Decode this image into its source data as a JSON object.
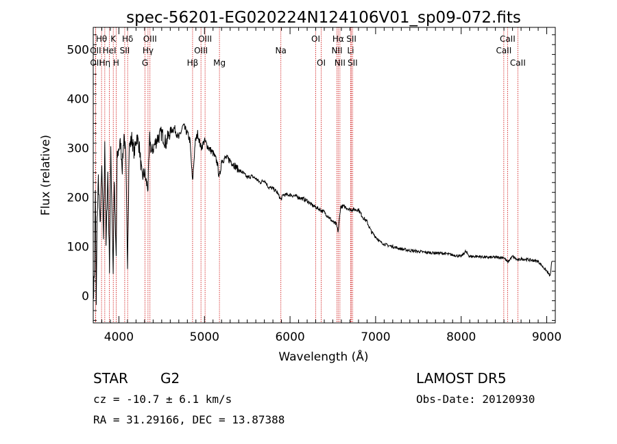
{
  "chart_data": {
    "type": "line",
    "title": "spec-56201-EG020224N124106V01_sp09-072.fits",
    "xlabel": "Wavelength (Å)",
    "ylabel": "Flux (relative)",
    "xlim": [
      3700,
      9100
    ],
    "ylim": [
      -55,
      545
    ],
    "x_ticks": [
      4000,
      5000,
      6000,
      7000,
      8000,
      9000
    ],
    "y_ticks": [
      0,
      100,
      200,
      300,
      400,
      500
    ],
    "grid": false,
    "series": [
      {
        "x": [
          3705,
          3715,
          3725,
          3735,
          3745,
          3760,
          3780,
          3800,
          3820,
          3835,
          3850,
          3870,
          3890,
          3905,
          3920,
          3933,
          3945,
          3960,
          3968,
          3980,
          4000,
          4020,
          4040,
          4060,
          4080,
          4101,
          4120,
          4150,
          4180,
          4210,
          4240,
          4270,
          4300,
          4320,
          4340,
          4360,
          4380,
          4400,
          4450,
          4500,
          4550,
          4600,
          4650,
          4700,
          4750,
          4800,
          4830,
          4861,
          4890,
          4920,
          4960,
          5000,
          5050,
          5100,
          5150,
          5172,
          5183,
          5200,
          5250,
          5300,
          5350,
          5400,
          5450,
          5500,
          5550,
          5600,
          5650,
          5700,
          5750,
          5800,
          5850,
          5893,
          5920,
          6000,
          6050,
          6100,
          6150,
          6200,
          6250,
          6300,
          6350,
          6400,
          6450,
          6500,
          6540,
          6563,
          6590,
          6620,
          6650,
          6700,
          6750,
          6800,
          6850,
          6900,
          6950,
          7000,
          7050,
          7100,
          7150,
          7200,
          7300,
          7400,
          7500,
          7600,
          7700,
          7800,
          7900,
          8000,
          8050,
          8100,
          8200,
          8300,
          8400,
          8498,
          8542,
          8600,
          8662,
          8700,
          8800,
          8900,
          8950,
          9000,
          9020,
          9040,
          9060
        ],
        "values": [
          10,
          60,
          220,
          -20,
          150,
          240,
          140,
          260,
          120,
          320,
          100,
          250,
          60,
          290,
          170,
          50,
          240,
          120,
          80,
          280,
          300,
          310,
          260,
          330,
          280,
          70,
          300,
          320,
          290,
          325,
          300,
          240,
          250,
          230,
          220,
          320,
          290,
          300,
          320,
          330,
          310,
          335,
          340,
          320,
          345,
          330,
          315,
          230,
          310,
          330,
          300,
          315,
          300,
          290,
          270,
          240,
          250,
          275,
          280,
          275,
          265,
          255,
          250,
          240,
          243,
          238,
          230,
          235,
          220,
          218,
          210,
          195,
          205,
          205,
          203,
          200,
          197,
          193,
          185,
          180,
          175,
          170,
          160,
          150,
          145,
          130,
          180,
          182,
          180,
          175,
          175,
          175,
          160,
          150,
          130,
          120,
          110,
          105,
          102,
          100,
          95,
          92,
          90,
          88,
          87,
          86,
          83,
          80,
          90,
          80,
          80,
          78,
          78,
          78,
          68,
          80,
          72,
          75,
          73,
          70,
          60,
          50,
          45,
          40,
          70
        ]
      }
    ],
    "line_markers": [
      {
        "label": "Hθ",
        "x": 3797,
        "row": 1
      },
      {
        "label": "K",
        "x": 3934,
        "row": 1
      },
      {
        "label": "Hδ",
        "x": 4102,
        "row": 1
      },
      {
        "label": "OIII",
        "x": 4363,
        "row": 1
      },
      {
        "label": "OIII",
        "x": 5007,
        "row": 1
      },
      {
        "label": "OI",
        "x": 6300,
        "row": 1
      },
      {
        "label": "Hα",
        "x": 6563,
        "row": 1
      },
      {
        "label": "SII",
        "x": 6717,
        "row": 1
      },
      {
        "label": "CaII",
        "x": 8542,
        "row": 1
      },
      {
        "label": "OII",
        "x": 3727,
        "row": 2
      },
      {
        "label": "HeI",
        "x": 3889,
        "row": 2
      },
      {
        "label": "SII",
        "x": 4068,
        "row": 2
      },
      {
        "label": "Hγ",
        "x": 4340,
        "row": 2
      },
      {
        "label": "OIII",
        "x": 4959,
        "row": 2
      },
      {
        "label": "Na",
        "x": 5893,
        "row": 2
      },
      {
        "label": "NII",
        "x": 6548,
        "row": 2
      },
      {
        "label": "Li",
        "x": 6708,
        "row": 2
      },
      {
        "label": "CaII",
        "x": 8498,
        "row": 2
      },
      {
        "label": "OII",
        "x": 3729,
        "row": 3
      },
      {
        "label": "Hη",
        "x": 3835,
        "row": 3
      },
      {
        "label": "H",
        "x": 3968,
        "row": 3
      },
      {
        "label": "G",
        "x": 4305,
        "row": 3
      },
      {
        "label": "Hβ",
        "x": 4861,
        "row": 3
      },
      {
        "label": "Mg",
        "x": 5175,
        "row": 3
      },
      {
        "label": "OI",
        "x": 6364,
        "row": 3
      },
      {
        "label": "NII",
        "x": 6583,
        "row": 3
      },
      {
        "label": "SII",
        "x": 6731,
        "row": 3
      },
      {
        "label": "CaII",
        "x": 8662,
        "row": 3
      }
    ],
    "marker_color": "#cc0000",
    "line_color": "#000000"
  },
  "info": {
    "class": "STAR",
    "subclass": "G2",
    "survey": "LAMOST DR5",
    "cz": "cz = -10.7 ± 6.1 km/s",
    "obs_date": "Obs-Date: 20120930",
    "coords": "RA =  31.29166, DEC =  13.87388"
  }
}
